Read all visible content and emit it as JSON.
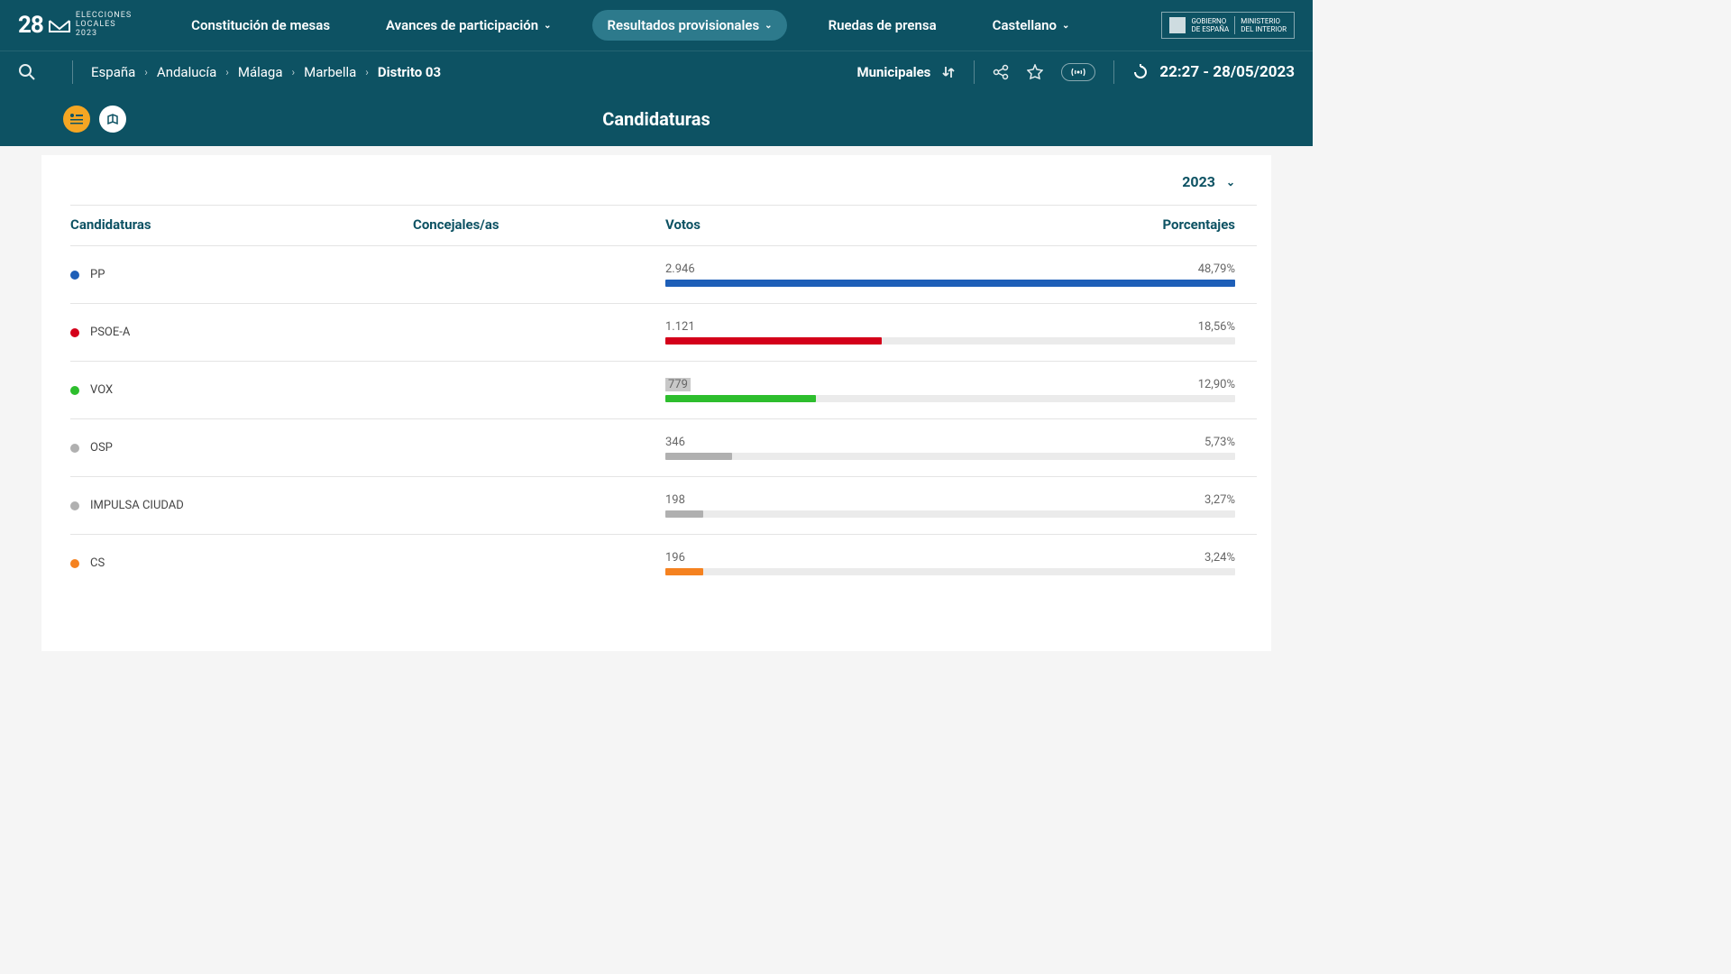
{
  "logo": {
    "num": "28",
    "letter": "M",
    "line1": "ELECCIONES",
    "line2": "LOCALES",
    "line3": "2023"
  },
  "nav": {
    "item1": "Constitución de mesas",
    "item2": "Avances de participación",
    "item3": "Resultados provisionales",
    "item4": "Ruedas de prensa",
    "item5": "Castellano"
  },
  "gov": {
    "line1": "GOBIERNO",
    "line2": "DE ESPAÑA",
    "line3": "MINISTERIO",
    "line4": "DEL INTERIOR"
  },
  "breadcrumb": {
    "b1": "España",
    "b2": "Andalucía",
    "b3": "Málaga",
    "b4": "Marbella",
    "b5": "Distrito 03"
  },
  "electionType": "Municipales",
  "timestamp": "22:27 - 28/05/2023",
  "sectionTitle": "Candidaturas",
  "yearSelector": "2023",
  "headers": {
    "cand": "Candidaturas",
    "conc": "Concejales/as",
    "votos": "Votos",
    "pct": "Porcentajes"
  },
  "maxVotes": 2946,
  "results": [
    {
      "name": "PP",
      "color": "#1e5fb8",
      "votes": "2.946",
      "votesNum": 2946,
      "pct": "48,79%",
      "highlighted": false
    },
    {
      "name": "PSOE-A",
      "color": "#d4001a",
      "votes": "1.121",
      "votesNum": 1121,
      "pct": "18,56%",
      "highlighted": false
    },
    {
      "name": "VOX",
      "color": "#2dbe2d",
      "votes": "779",
      "votesNum": 779,
      "pct": "12,90%",
      "highlighted": true
    },
    {
      "name": "OSP",
      "color": "#b0b0b0",
      "votes": "346",
      "votesNum": 346,
      "pct": "5,73%",
      "highlighted": false
    },
    {
      "name": "IMPULSA CIUDAD",
      "color": "#b0b0b0",
      "votes": "198",
      "votesNum": 198,
      "pct": "3,27%",
      "highlighted": false
    },
    {
      "name": "CS",
      "color": "#f58220",
      "votes": "196",
      "votesNum": 196,
      "pct": "3,24%",
      "highlighted": false
    }
  ]
}
